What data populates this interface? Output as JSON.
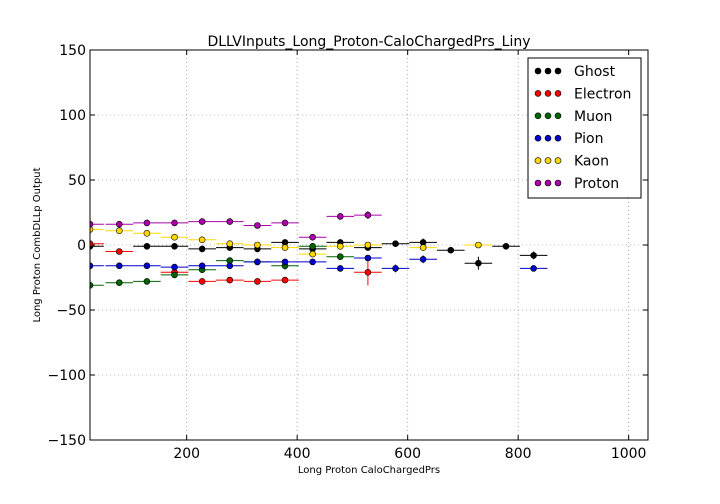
{
  "chart_data": {
    "type": "scatter",
    "title": "DLLVInputs_Long_Proton-CaloChargedPrs_Liny",
    "xlabel": "Long Proton CaloChargedPrs",
    "ylabel": "Long Proton CombDLLp Output",
    "xlim": [
      25,
      1035
    ],
    "ylim": [
      -150,
      150
    ],
    "xticks": [
      200,
      400,
      600,
      800,
      1000
    ],
    "yticks": [
      -150,
      -100,
      -50,
      0,
      50,
      100,
      150
    ],
    "xtick_labels": [
      "200",
      "400",
      "600",
      "800",
      "1000"
    ],
    "ytick_labels": [
      "−150",
      "−100",
      "−50",
      "0",
      "50",
      "100",
      "150"
    ],
    "grid": true,
    "legend_position": "top-right",
    "series": [
      {
        "name": "Ghost",
        "color": "#000000",
        "points": [
          {
            "x": 25,
            "y": -1,
            "xerr": 25,
            "yerr": 1
          },
          {
            "x": 128,
            "y": -1,
            "xerr": 25,
            "yerr": 1
          },
          {
            "x": 178,
            "y": -1,
            "xerr": 25,
            "yerr": 1
          },
          {
            "x": 228,
            "y": -3,
            "xerr": 25,
            "yerr": 1
          },
          {
            "x": 278,
            "y": -2,
            "xerr": 25,
            "yerr": 1
          },
          {
            "x": 328,
            "y": -3,
            "xerr": 25,
            "yerr": 1
          },
          {
            "x": 378,
            "y": 2,
            "xerr": 25,
            "yerr": 1
          },
          {
            "x": 428,
            "y": -3,
            "xerr": 25,
            "yerr": 2
          },
          {
            "x": 478,
            "y": 2,
            "xerr": 25,
            "yerr": 1
          },
          {
            "x": 528,
            "y": -2,
            "xerr": 25,
            "yerr": 1
          },
          {
            "x": 578,
            "y": 1,
            "xerr": 25,
            "yerr": 1
          },
          {
            "x": 628,
            "y": 2,
            "xerr": 25,
            "yerr": 3
          },
          {
            "x": 678,
            "y": -4,
            "xerr": 25,
            "yerr": 1
          },
          {
            "x": 728,
            "y": -14,
            "xerr": 25,
            "yerr": 5
          },
          {
            "x": 778,
            "y": -1,
            "xerr": 25,
            "yerr": 1
          },
          {
            "x": 828,
            "y": -8,
            "xerr": 25,
            "yerr": 3
          }
        ]
      },
      {
        "name": "Electron",
        "color": "#ff0000",
        "points": [
          {
            "x": 25,
            "y": 1,
            "xerr": 25,
            "yerr": 1
          },
          {
            "x": 78,
            "y": -5,
            "xerr": 25,
            "yerr": 1
          },
          {
            "x": 178,
            "y": -21,
            "xerr": 25,
            "yerr": 2
          },
          {
            "x": 228,
            "y": -28,
            "xerr": 25,
            "yerr": 1
          },
          {
            "x": 278,
            "y": -27,
            "xerr": 25,
            "yerr": 1
          },
          {
            "x": 328,
            "y": -28,
            "xerr": 25,
            "yerr": 1
          },
          {
            "x": 378,
            "y": -27,
            "xerr": 25,
            "yerr": 2
          },
          {
            "x": 528,
            "y": -21,
            "xerr": 25,
            "yerr": 10
          }
        ]
      },
      {
        "name": "Muon",
        "color": "#006400",
        "points": [
          {
            "x": 25,
            "y": -31,
            "xerr": 25,
            "yerr": 1
          },
          {
            "x": 78,
            "y": -29,
            "xerr": 25,
            "yerr": 1
          },
          {
            "x": 128,
            "y": -28,
            "xerr": 25,
            "yerr": 1
          },
          {
            "x": 178,
            "y": -23,
            "xerr": 25,
            "yerr": 1
          },
          {
            "x": 228,
            "y": -19,
            "xerr": 25,
            "yerr": 1
          },
          {
            "x": 278,
            "y": -12,
            "xerr": 25,
            "yerr": 1
          },
          {
            "x": 328,
            "y": -13,
            "xerr": 25,
            "yerr": 1
          },
          {
            "x": 378,
            "y": -16,
            "xerr": 25,
            "yerr": 3
          },
          {
            "x": 428,
            "y": -1,
            "xerr": 25,
            "yerr": 1
          },
          {
            "x": 478,
            "y": -9,
            "xerr": 25,
            "yerr": 1
          }
        ]
      },
      {
        "name": "Pion",
        "color": "#0000cc",
        "points": [
          {
            "x": 25,
            "y": -16,
            "xerr": 25,
            "yerr": 1
          },
          {
            "x": 78,
            "y": -16,
            "xerr": 25,
            "yerr": 1
          },
          {
            "x": 128,
            "y": -16,
            "xerr": 25,
            "yerr": 1
          },
          {
            "x": 178,
            "y": -17,
            "xerr": 25,
            "yerr": 1
          },
          {
            "x": 228,
            "y": -16,
            "xerr": 25,
            "yerr": 1
          },
          {
            "x": 278,
            "y": -16,
            "xerr": 25,
            "yerr": 1
          },
          {
            "x": 328,
            "y": -13,
            "xerr": 25,
            "yerr": 1
          },
          {
            "x": 378,
            "y": -13,
            "xerr": 25,
            "yerr": 1
          },
          {
            "x": 428,
            "y": -13,
            "xerr": 25,
            "yerr": 1
          },
          {
            "x": 478,
            "y": -18,
            "xerr": 25,
            "yerr": 1
          },
          {
            "x": 528,
            "y": -10,
            "xerr": 25,
            "yerr": 1
          },
          {
            "x": 578,
            "y": -18,
            "xerr": 25,
            "yerr": 3
          },
          {
            "x": 628,
            "y": -11,
            "xerr": 25,
            "yerr": 3
          },
          {
            "x": 828,
            "y": -18,
            "xerr": 25,
            "yerr": 1
          }
        ]
      },
      {
        "name": "Kaon",
        "color": "#ffd700",
        "points": [
          {
            "x": 25,
            "y": 12,
            "xerr": 25,
            "yerr": 1
          },
          {
            "x": 78,
            "y": 11,
            "xerr": 25,
            "yerr": 1
          },
          {
            "x": 128,
            "y": 9,
            "xerr": 25,
            "yerr": 1
          },
          {
            "x": 178,
            "y": 6,
            "xerr": 25,
            "yerr": 1
          },
          {
            "x": 228,
            "y": 4,
            "xerr": 25,
            "yerr": 1
          },
          {
            "x": 278,
            "y": 1,
            "xerr": 25,
            "yerr": 1
          },
          {
            "x": 328,
            "y": 0,
            "xerr": 25,
            "yerr": 1
          },
          {
            "x": 378,
            "y": -2,
            "xerr": 25,
            "yerr": 1
          },
          {
            "x": 428,
            "y": -7,
            "xerr": 25,
            "yerr": 1
          },
          {
            "x": 478,
            "y": -1,
            "xerr": 25,
            "yerr": 1
          },
          {
            "x": 528,
            "y": 0,
            "xerr": 25,
            "yerr": 1
          },
          {
            "x": 628,
            "y": -2,
            "xerr": 25,
            "yerr": 1
          },
          {
            "x": 728,
            "y": 0,
            "xerr": 25,
            "yerr": 1
          }
        ]
      },
      {
        "name": "Proton",
        "color": "#aa00aa",
        "points": [
          {
            "x": 25,
            "y": 16,
            "xerr": 25,
            "yerr": 1
          },
          {
            "x": 78,
            "y": 16,
            "xerr": 25,
            "yerr": 1
          },
          {
            "x": 128,
            "y": 17,
            "xerr": 25,
            "yerr": 1
          },
          {
            "x": 178,
            "y": 17,
            "xerr": 25,
            "yerr": 1
          },
          {
            "x": 228,
            "y": 18,
            "xerr": 25,
            "yerr": 1
          },
          {
            "x": 278,
            "y": 18,
            "xerr": 25,
            "yerr": 1
          },
          {
            "x": 328,
            "y": 15,
            "xerr": 25,
            "yerr": 1
          },
          {
            "x": 378,
            "y": 17,
            "xerr": 25,
            "yerr": 1
          },
          {
            "x": 428,
            "y": 6,
            "xerr": 25,
            "yerr": 1
          },
          {
            "x": 478,
            "y": 22,
            "xerr": 25,
            "yerr": 1
          },
          {
            "x": 528,
            "y": 23,
            "xerr": 25,
            "yerr": 3
          }
        ]
      }
    ]
  }
}
